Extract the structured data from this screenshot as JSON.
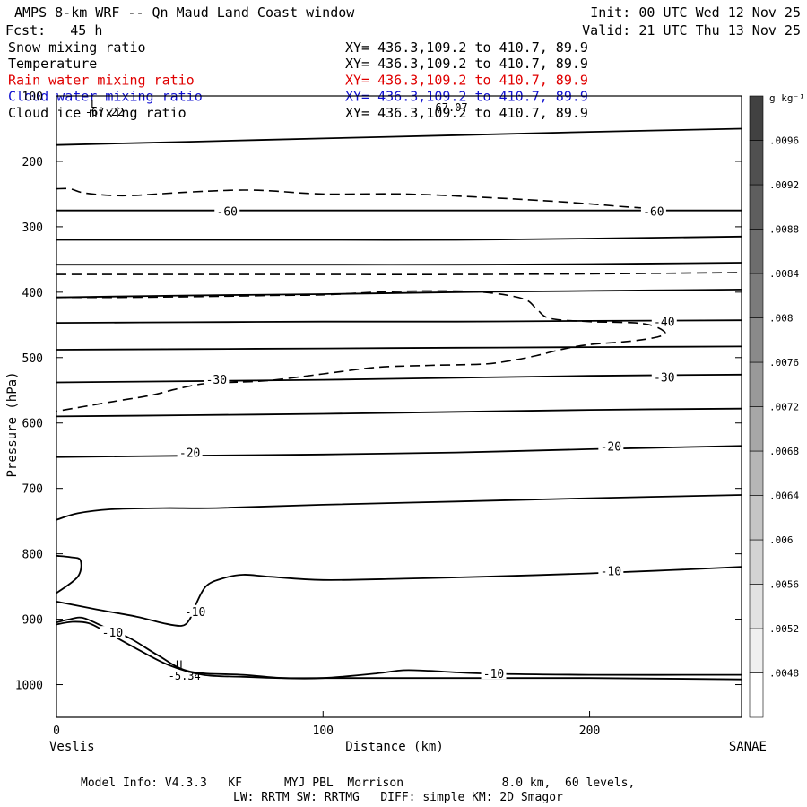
{
  "header": {
    "title": "AMPS 8-km WRF -- Qn Maud Land Coast window",
    "fcst": "Fcst:   45 h",
    "init": "Init: 00 UTC Wed 12 Nov 25",
    "valid": "Valid: 21 UTC Thu 13 Nov 25"
  },
  "fields": [
    {
      "name": "Snow mixing ratio",
      "xy": "XY= 436.3,109.2 to 410.7, 89.9",
      "color": "#000000"
    },
    {
      "name": "Temperature",
      "xy": "XY= 436.3,109.2 to 410.7, 89.9",
      "color": "#000000"
    },
    {
      "name": "Rain water mixing ratio",
      "xy": "XY= 436.3,109.2 to 410.7, 89.9",
      "color": "#e00000"
    },
    {
      "name": "Cloud water mixing ratio",
      "xy": "XY= 436.3,109.2 to 410.7, 89.9",
      "color": "#1010d0"
    },
    {
      "name": "Cloud ice mixing ratio",
      "xy": "XY= 436.3,109.2 to 410.7, 89.9",
      "color": "#000000"
    }
  ],
  "footer": {
    "line1": "Model Info: V4.3.3   KF      MYJ PBL  Morrison              8.0 km,  60 levels,",
    "line2": "LW: RRTM SW: RRTMG   DIFF: simple KM: 2D Smagor"
  },
  "chart_data": {
    "type": "line",
    "subtype": "cross-section contour",
    "xlabel": "Distance (km)",
    "ylabel": "Pressure (hPa)",
    "x_ticks": [
      0,
      100,
      200
    ],
    "y_ticks": [
      200,
      300,
      400,
      500,
      600,
      700,
      800,
      900,
      1000
    ],
    "y_top_tick_label": "100",
    "xlim": [
      0,
      257
    ],
    "ylim": [
      1050,
      100
    ],
    "left_end_label": "Veslis",
    "right_end_label": "SANAE",
    "extrema_labels": [
      {
        "text": "-67.22",
        "x": 18,
        "p": 125
      },
      {
        "text": "-67.07",
        "x": 147,
        "p": 118
      },
      {
        "text": "H",
        "x": 46,
        "p": 970
      },
      {
        "text": "-5.34",
        "x": 48,
        "p": 987
      },
      {
        "text": "L",
        "x": 14,
        "p": 112
      }
    ],
    "temperature_contour_labels": [
      {
        "text": "-60",
        "x": 64,
        "p": 276
      },
      {
        "text": "-60",
        "x": 224,
        "p": 276
      },
      {
        "text": "-40",
        "x": 228,
        "p": 445
      },
      {
        "text": "-30",
        "x": 60,
        "p": 533
      },
      {
        "text": "-30",
        "x": 228,
        "p": 530
      },
      {
        "text": "-20",
        "x": 50,
        "p": 645
      },
      {
        "text": "-20",
        "x": 208,
        "p": 635
      },
      {
        "text": "-10",
        "x": 208,
        "p": 826
      },
      {
        "text": "-10",
        "x": 52,
        "p": 888
      },
      {
        "text": "-10",
        "x": 21,
        "p": 920
      },
      {
        "text": "-10",
        "x": 164,
        "p": 983
      }
    ],
    "temperature_contours": [
      {
        "x": [
          0,
          50,
          100,
          150,
          200,
          257
        ],
        "p": [
          175,
          170,
          165,
          160,
          155,
          150
        ]
      },
      {
        "x": [
          0,
          50,
          100,
          150,
          200,
          257
        ],
        "p": [
          275,
          275,
          275,
          275,
          275,
          275
        ]
      },
      {
        "x": [
          0,
          50,
          100,
          150,
          200,
          257
        ],
        "p": [
          320,
          320,
          320,
          320,
          318,
          315
        ]
      },
      {
        "x": [
          0,
          50,
          100,
          150,
          200,
          257
        ],
        "p": [
          358,
          358,
          358,
          358,
          357,
          355
        ]
      },
      {
        "x": [
          0,
          50,
          100,
          150,
          200,
          257
        ],
        "p": [
          408,
          405,
          403,
          400,
          398,
          396
        ]
      },
      {
        "x": [
          0,
          50,
          100,
          150,
          200,
          257
        ],
        "p": [
          447,
          446,
          445,
          445,
          444,
          443
        ]
      },
      {
        "x": [
          0,
          50,
          100,
          150,
          200,
          257
        ],
        "p": [
          488,
          487,
          486,
          485,
          484,
          483
        ]
      },
      {
        "x": [
          0,
          50,
          100,
          150,
          200,
          257
        ],
        "p": [
          538,
          536,
          534,
          531,
          528,
          526
        ]
      },
      {
        "x": [
          0,
          50,
          100,
          150,
          200,
          257
        ],
        "p": [
          590,
          588,
          586,
          583,
          580,
          578
        ]
      },
      {
        "x": [
          0,
          50,
          100,
          150,
          200,
          257
        ],
        "p": [
          652,
          650,
          648,
          645,
          640,
          635
        ]
      },
      {
        "x": [
          0,
          8,
          20,
          40,
          60,
          100,
          150,
          200,
          257
        ],
        "p": [
          748,
          738,
          732,
          730,
          730,
          725,
          720,
          715,
          710
        ]
      },
      {
        "x": [
          0,
          5,
          9,
          8,
          0
        ],
        "p": [
          803,
          805,
          810,
          835,
          860
        ]
      },
      {
        "x": [
          0,
          15,
          30,
          40,
          47,
          50,
          52,
          56,
          62,
          70,
          80,
          100,
          130,
          160,
          200,
          230,
          257
        ],
        "p": [
          873,
          885,
          896,
          906,
          910,
          900,
          880,
          850,
          838,
          832,
          835,
          840,
          838,
          835,
          830,
          825,
          820
        ]
      },
      {
        "x": [
          0,
          5,
          10,
          18,
          28,
          38,
          50,
          70,
          85,
          100,
          120,
          130,
          140,
          160,
          200,
          257
        ],
        "p": [
          905,
          900,
          898,
          912,
          930,
          955,
          980,
          985,
          990,
          990,
          983,
          978,
          979,
          983,
          985,
          985
        ]
      },
      {
        "x": [
          0,
          6,
          12,
          18,
          30,
          42,
          55,
          70,
          85,
          100,
          130,
          160,
          200,
          257
        ],
        "p": [
          908,
          904,
          906,
          918,
          945,
          970,
          985,
          988,
          990,
          990,
          990,
          990,
          990,
          992
        ]
      }
    ],
    "cloud_ice_contours": [
      {
        "x": [
          0,
          5,
          10,
          20,
          30,
          45,
          60,
          70,
          80,
          100,
          130,
          160,
          190,
          215,
          225
        ],
        "p": [
          242,
          242,
          248,
          252,
          252,
          248,
          245,
          244,
          245,
          250,
          250,
          255,
          262,
          270,
          272
        ]
      },
      {
        "x": [
          0,
          50,
          100,
          150,
          200,
          257
        ],
        "p": [
          373,
          373,
          373,
          373,
          372,
          370
        ]
      },
      {
        "x": [
          0,
          20,
          50,
          80,
          100,
          120,
          140,
          160,
          175,
          180,
          185,
          200,
          220,
          228,
          226,
          215,
          200,
          190,
          180,
          170,
          160,
          140,
          120,
          100,
          80,
          65,
          55,
          45,
          35,
          20,
          10,
          0
        ],
        "p": [
          408,
          408,
          407,
          405,
          404,
          400,
          398,
          400,
          410,
          425,
          440,
          445,
          448,
          460,
          468,
          475,
          480,
          487,
          497,
          505,
          510,
          512,
          515,
          525,
          535,
          538,
          540,
          548,
          558,
          568,
          575,
          582
        ]
      }
    ],
    "colorbar": {
      "label": "g kg⁻¹",
      "ticks": [
        ".0048",
        ".0052",
        ".0056",
        ".006",
        ".0064",
        ".0068",
        ".0072",
        ".0076",
        ".008",
        ".0084",
        ".0088",
        ".0092",
        ".0096"
      ]
    }
  }
}
